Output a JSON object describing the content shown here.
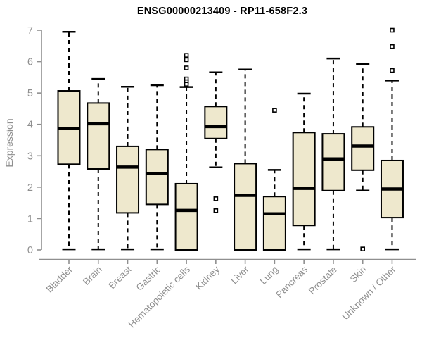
{
  "chart_data": {
    "type": "box",
    "title": "ENSG00000213409 - RP11-658F2.3",
    "xlabel": "",
    "ylabel": "Expression",
    "ylim": [
      0,
      7
    ],
    "yticks": [
      0,
      1,
      2,
      3,
      4,
      5,
      6,
      7
    ],
    "grid": false,
    "legend": false,
    "categories": [
      "Bladder",
      "Brain",
      "Breast",
      "Gastric",
      "Hematopoietic cells",
      "Kidney",
      "Liver",
      "Lung",
      "Pancreas",
      "Prostate",
      "Skin",
      "Unknown / Other"
    ],
    "series": [
      {
        "category": "Bladder",
        "whisker_low": 0.02,
        "q1": 2.73,
        "median": 3.87,
        "q3": 5.07,
        "whisker_high": 6.95,
        "outliers": []
      },
      {
        "category": "Brain",
        "whisker_low": 0.02,
        "q1": 2.58,
        "median": 4.02,
        "q3": 4.68,
        "whisker_high": 5.45,
        "outliers": []
      },
      {
        "category": "Breast",
        "whisker_low": 0.02,
        "q1": 1.18,
        "median": 2.64,
        "q3": 3.3,
        "whisker_high": 5.2,
        "outliers": []
      },
      {
        "category": "Gastric",
        "whisker_low": 0.02,
        "q1": 1.45,
        "median": 2.44,
        "q3": 3.2,
        "whisker_high": 5.25,
        "outliers": []
      },
      {
        "category": "Hematopoietic cells",
        "whisker_low": 0.0,
        "q1": 0.0,
        "median": 1.26,
        "q3": 2.11,
        "whisker_high": 5.19,
        "outliers": [
          6.2,
          6.06,
          5.8,
          5.45,
          5.36,
          5.28
        ]
      },
      {
        "category": "Kidney",
        "whisker_low": 2.63,
        "q1": 3.55,
        "median": 3.93,
        "q3": 4.57,
        "whisker_high": 5.66,
        "outliers": [
          1.63,
          1.25
        ]
      },
      {
        "category": "Liver",
        "whisker_low": 0.0,
        "q1": 0.0,
        "median": 1.74,
        "q3": 2.75,
        "whisker_high": 5.75,
        "outliers": []
      },
      {
        "category": "Lung",
        "whisker_low": 0.0,
        "q1": 0.0,
        "median": 1.15,
        "q3": 1.7,
        "whisker_high": 2.55,
        "outliers": [
          4.45
        ]
      },
      {
        "category": "Pancreas",
        "whisker_low": 0.02,
        "q1": 0.78,
        "median": 1.96,
        "q3": 3.74,
        "whisker_high": 4.98,
        "outliers": []
      },
      {
        "category": "Prostate",
        "whisker_low": 0.02,
        "q1": 1.89,
        "median": 2.9,
        "q3": 3.7,
        "whisker_high": 6.1,
        "outliers": []
      },
      {
        "category": "Skin",
        "whisker_low": 1.89,
        "q1": 2.54,
        "median": 3.31,
        "q3": 3.92,
        "whisker_high": 5.93,
        "outliers": [
          0.03
        ]
      },
      {
        "category": "Unknown / Other",
        "whisker_low": 0.02,
        "q1": 1.03,
        "median": 1.94,
        "q3": 2.85,
        "whisker_high": 5.4,
        "outliers": [
          7.0,
          6.48,
          5.72
        ]
      }
    ],
    "colors": {
      "box_fill": "#EEE8CD",
      "box_border": "#000000",
      "median": "#000000",
      "whisker": "#000000",
      "outlier_stroke": "#000000",
      "outlier_fill": "#FFFFFF",
      "axis": "#8F8F8F",
      "tick_labels": "#8F8F8F",
      "title": "#000000",
      "background": "#FFFFFF"
    }
  }
}
